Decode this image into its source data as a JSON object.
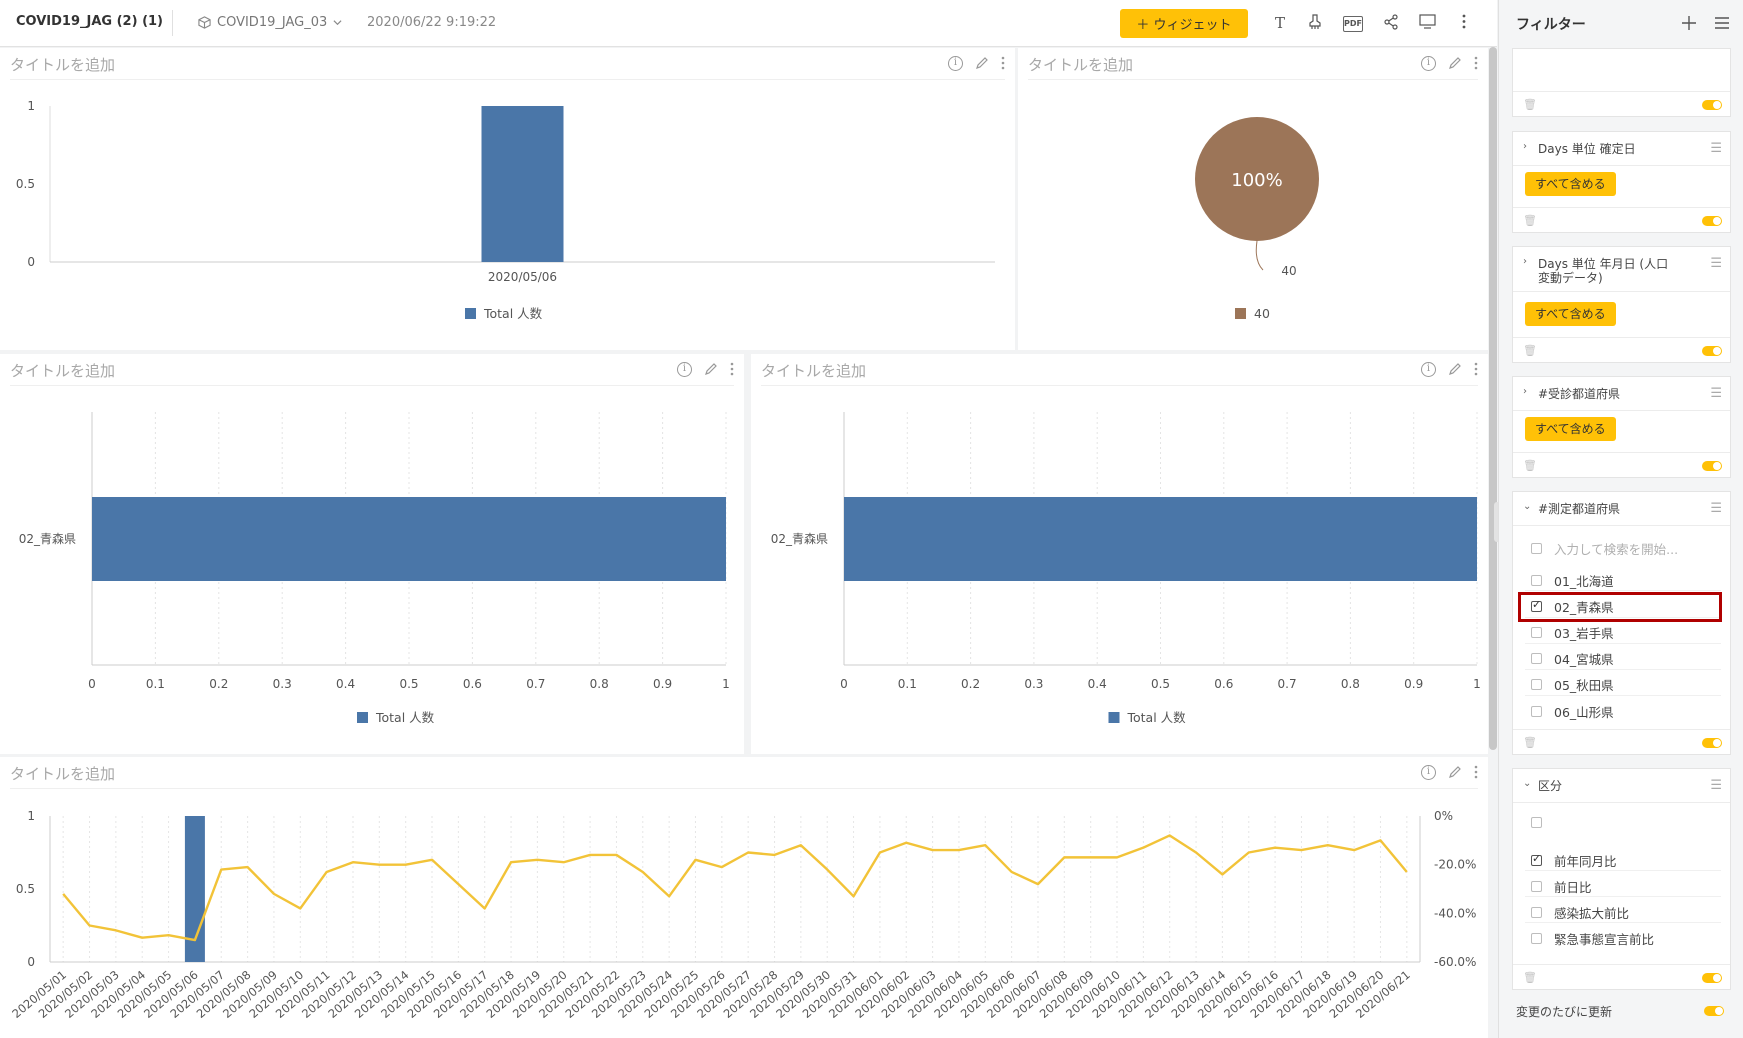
{
  "header": {
    "app_title": "COVID19_JAG (2) (1)",
    "dataset": "COVID19_JAG_03",
    "timestamp": "2020/06/22 9:19:22",
    "widget_button": "＋ ウィジェット",
    "text_icon": "T",
    "pdf_label": "PDF"
  },
  "panels": {
    "placeholder_title": "タイトルを追加",
    "info_glyph": "i"
  },
  "filters": {
    "title": "フィルター",
    "include_all": "すべて含める",
    "f1_name": "Days 単位 確定日",
    "f2_name_line1": "Days 単位 年月日 (人口",
    "f2_name_line2": "変動データ)",
    "f3_name": "#受診都道府県",
    "f4_name": "#測定都道府県",
    "f4_search_placeholder": "入力して検索を開始...",
    "f4_options": [
      "01_北海道",
      "02_青森県",
      "03_岩手県",
      "04_宮城県",
      "05_秋田県",
      "06_山形県"
    ],
    "f4_checked": [
      false,
      true,
      false,
      false,
      false,
      false
    ],
    "f5_name": "区分",
    "f5_options": [
      "前年同月比",
      "前日比",
      "感染拡大前比",
      "緊急事態宣言前比"
    ],
    "f5_checked": [
      true,
      false,
      false,
      false
    ],
    "live_update": "変更のたびに更新"
  },
  "chart_data": [
    {
      "type": "bar",
      "categories": [
        "2020/05/06"
      ],
      "series": [
        {
          "name": "Total 人数",
          "values": [
            1
          ]
        }
      ],
      "yticks": [
        "0",
        "0.5",
        "1"
      ],
      "ylim": [
        0,
        1
      ]
    },
    {
      "type": "pie",
      "labels": [
        "40"
      ],
      "values": [
        100
      ],
      "slice_label": "100%",
      "legend": [
        "40"
      ],
      "colors": [
        "#9c7558"
      ]
    },
    {
      "type": "bar",
      "orientation": "horizontal",
      "categories": [
        "02_青森県"
      ],
      "series": [
        {
          "name": "Total 人数",
          "values": [
            1
          ]
        }
      ],
      "xticks": [
        "0",
        "0.1",
        "0.2",
        "0.3",
        "0.4",
        "0.5",
        "0.6",
        "0.7",
        "0.8",
        "0.9",
        "1"
      ],
      "xlim": [
        0,
        1
      ]
    },
    {
      "type": "bar",
      "orientation": "horizontal",
      "categories": [
        "02_青森県"
      ],
      "series": [
        {
          "name": "Total 人数",
          "values": [
            1
          ]
        }
      ],
      "xticks": [
        "0",
        "0.1",
        "0.2",
        "0.3",
        "0.4",
        "0.5",
        "0.6",
        "0.7",
        "0.8",
        "0.9",
        "1"
      ],
      "xlim": [
        0,
        1
      ]
    },
    {
      "type": "line",
      "x": [
        "2020/05/01",
        "2020/05/02",
        "2020/05/03",
        "2020/05/04",
        "2020/05/05",
        "2020/05/06",
        "2020/05/07",
        "2020/05/08",
        "2020/05/09",
        "2020/05/10",
        "2020/05/11",
        "2020/05/12",
        "2020/05/13",
        "2020/05/14",
        "2020/05/15",
        "2020/05/16",
        "2020/05/17",
        "2020/05/18",
        "2020/05/19",
        "2020/05/20",
        "2020/05/21",
        "2020/05/22",
        "2020/05/23",
        "2020/05/24",
        "2020/05/25",
        "2020/05/26",
        "2020/05/27",
        "2020/05/28",
        "2020/05/29",
        "2020/05/30",
        "2020/05/31",
        "2020/06/01",
        "2020/06/02",
        "2020/06/03",
        "2020/06/04",
        "2020/06/05",
        "2020/06/06",
        "2020/06/07",
        "2020/06/08",
        "2020/06/09",
        "2020/06/10",
        "2020/06/11",
        "2020/06/12",
        "2020/06/13",
        "2020/06/14",
        "2020/06/15",
        "2020/06/16",
        "2020/06/17",
        "2020/06/18",
        "2020/06/19",
        "2020/06/20",
        "2020/06/21"
      ],
      "bar_values": [
        0,
        0,
        0,
        0,
        0,
        1,
        0,
        0,
        0,
        0,
        0,
        0,
        0,
        0,
        0,
        0,
        0,
        0,
        0,
        0,
        0,
        0,
        0,
        0,
        0,
        0,
        0,
        0,
        0,
        0,
        0,
        0,
        0,
        0,
        0,
        0,
        0,
        0,
        0,
        0,
        0,
        0,
        0,
        0,
        0,
        0,
        0,
        0,
        0,
        0,
        0,
        0
      ],
      "line_values": [
        -32,
        -45,
        -47,
        -50,
        -49,
        -51,
        -22,
        -21,
        -32,
        -38,
        -23,
        -19,
        -20,
        -20,
        -18,
        -28,
        -38,
        -19,
        -18,
        -19,
        -16,
        -16,
        -23,
        -33,
        -18,
        -21,
        -15,
        -16,
        -12,
        -22,
        -33,
        -15,
        -11,
        -14,
        -14,
        -12,
        -23,
        -28,
        -17,
        -17,
        -17,
        -13,
        -8,
        -15,
        -24,
        -15,
        -13,
        -14,
        -12,
        -14,
        -10,
        -23
      ],
      "yticks_left": [
        "0",
        "0.5",
        "1"
      ],
      "yticks_right": [
        "0%",
        "-20.0%",
        "-40.0%",
        "-60.0%"
      ],
      "ylim_left": [
        0,
        1
      ],
      "ylim_right": [
        -60,
        0
      ],
      "bar_color": "#4a76a8",
      "line_color": "#f2c338"
    }
  ]
}
